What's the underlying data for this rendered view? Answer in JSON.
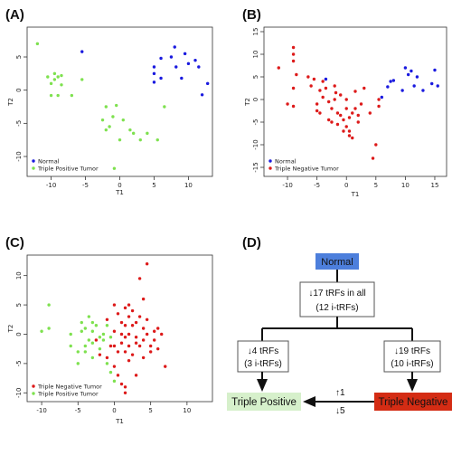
{
  "panels": [
    {
      "label": "(A)"
    },
    {
      "label": "(B)"
    },
    {
      "label": "(C)"
    },
    {
      "label": "(D)"
    }
  ],
  "chart_data": [
    {
      "type": "scatter",
      "xlabel": "T1",
      "ylabel": "T2",
      "xticks": [
        -10,
        -5,
        0,
        5,
        10
      ],
      "yticks": [
        -10,
        -5,
        0,
        5
      ],
      "xlim": [
        -13.5,
        13.5
      ],
      "ylim": [
        -13,
        9.5
      ],
      "legend_position": "bottom-left",
      "series": [
        {
          "name": "Normal",
          "color": "#1a1adf",
          "points": [
            [
              -5.5,
              5.8
            ],
            [
              5,
              3.5
            ],
            [
              5,
              2.5
            ],
            [
              5,
              1.2
            ],
            [
              6,
              4.8
            ],
            [
              6,
              1.8
            ],
            [
              7.5,
              5
            ],
            [
              8,
              6.5
            ],
            [
              8.2,
              3.5
            ],
            [
              9,
              1.8
            ],
            [
              9.5,
              5.5
            ],
            [
              10,
              4
            ],
            [
              11,
              4.5
            ],
            [
              11.5,
              3.5
            ],
            [
              12,
              -0.7
            ],
            [
              12.8,
              1
            ]
          ]
        },
        {
          "name": "Triple Positive Tumor",
          "color": "#7ee14f",
          "points": [
            [
              -12,
              7
            ],
            [
              -10.5,
              2
            ],
            [
              -10,
              1
            ],
            [
              -10,
              -0.8
            ],
            [
              -9.5,
              2.5
            ],
            [
              -9.5,
              1.6
            ],
            [
              -9,
              2
            ],
            [
              -9,
              -0.8
            ],
            [
              -8.5,
              2.2
            ],
            [
              -8.5,
              0.8
            ],
            [
              -7,
              -0.8
            ],
            [
              -5.5,
              1.6
            ],
            [
              -2.5,
              -4.5
            ],
            [
              -2,
              -2.5
            ],
            [
              -2,
              -6
            ],
            [
              -1.5,
              -5.5
            ],
            [
              -1,
              -4
            ],
            [
              -0.8,
              -11.8
            ],
            [
              -0.5,
              -2.3
            ],
            [
              0,
              -7.5
            ],
            [
              0.5,
              -4.5
            ],
            [
              1.5,
              -6
            ],
            [
              2,
              -6.5
            ],
            [
              3,
              -7.5
            ],
            [
              4,
              -6.5
            ],
            [
              5.5,
              -7.5
            ],
            [
              6.5,
              -2.5
            ]
          ]
        }
      ]
    },
    {
      "type": "scatter",
      "xlabel": "T1",
      "ylabel": "T2",
      "xticks": [
        -10,
        -5,
        0,
        5,
        10,
        15
      ],
      "yticks": [
        -15,
        -10,
        -5,
        0,
        5,
        10,
        15
      ],
      "xlim": [
        -14,
        17
      ],
      "ylim": [
        -17,
        16
      ],
      "legend_position": "bottom-left",
      "series": [
        {
          "name": "Normal",
          "color": "#1a1adf",
          "points": [
            [
              -3.5,
              4.5
            ],
            [
              6,
              0.5
            ],
            [
              7,
              2.8
            ],
            [
              7.5,
              4
            ],
            [
              8,
              4.2
            ],
            [
              9.5,
              2
            ],
            [
              10,
              7
            ],
            [
              10.5,
              5.5
            ],
            [
              11,
              6.3
            ],
            [
              11.5,
              3
            ],
            [
              12,
              5
            ],
            [
              13,
              2
            ],
            [
              14.5,
              3.5
            ],
            [
              15,
              6.5
            ],
            [
              15.5,
              3
            ]
          ]
        },
        {
          "name": "Triple Negative Tumor",
          "color": "#dd1a1a",
          "points": [
            [
              -9,
              10
            ],
            [
              -9,
              11.5
            ],
            [
              -9,
              8.5
            ],
            [
              -8.5,
              5.5
            ],
            [
              -9,
              2.5
            ],
            [
              -9,
              -1.5
            ],
            [
              -10,
              -1
            ],
            [
              -11.5,
              7
            ],
            [
              -6,
              3
            ],
            [
              -5.5,
              4.5
            ],
            [
              -5,
              -1
            ],
            [
              -5,
              -2.5
            ],
            [
              -4.5,
              2
            ],
            [
              -4.5,
              -3
            ],
            [
              -4,
              4
            ],
            [
              -4,
              0.5
            ],
            [
              -3.5,
              2.5
            ],
            [
              -3,
              -4.5
            ],
            [
              -3,
              -0.5
            ],
            [
              -2.5,
              -2
            ],
            [
              -2.5,
              -5
            ],
            [
              -2,
              3
            ],
            [
              -2,
              0
            ],
            [
              -1.8,
              1.5
            ],
            [
              -1.5,
              -3
            ],
            [
              -1.5,
              -5.5
            ],
            [
              -1,
              1
            ],
            [
              -1,
              -3.5
            ],
            [
              -0.5,
              -7
            ],
            [
              -0.5,
              -4.5
            ],
            [
              0,
              -2
            ],
            [
              0,
              -6
            ],
            [
              0,
              0
            ],
            [
              0.5,
              -4
            ],
            [
              0.5,
              -7
            ],
            [
              0.5,
              -8
            ],
            [
              1,
              -3
            ],
            [
              1,
              -8.5
            ],
            [
              1.5,
              1.8
            ],
            [
              1.5,
              -2
            ],
            [
              2,
              -3.5
            ],
            [
              2,
              -5
            ],
            [
              2.5,
              -1
            ],
            [
              3,
              2.5
            ],
            [
              4,
              -3
            ],
            [
              4.5,
              -13
            ],
            [
              5,
              -10
            ],
            [
              5.5,
              0
            ],
            [
              5.5,
              -1.5
            ],
            [
              -6.5,
              5
            ]
          ]
        }
      ]
    },
    {
      "type": "scatter",
      "xlabel": "T1",
      "ylabel": "T2",
      "xticks": [
        -10,
        -5,
        0,
        5,
        10
      ],
      "yticks": [
        -10,
        -5,
        0,
        5,
        10
      ],
      "xlim": [
        -12,
        13.5
      ],
      "ylim": [
        -11.5,
        13.5
      ],
      "legend_position": "bottom-left",
      "series": [
        {
          "name": "Triple Negative Tumor",
          "color": "#dd1a1a",
          "points": [
            [
              -2.5,
              -1
            ],
            [
              -2,
              -3.5
            ],
            [
              -1,
              2.5
            ],
            [
              -1,
              -4
            ],
            [
              -0.5,
              -2
            ],
            [
              0,
              0.5
            ],
            [
              0,
              -2
            ],
            [
              0,
              -5.5
            ],
            [
              0,
              5
            ],
            [
              0.5,
              3.5
            ],
            [
              0.5,
              -3
            ],
            [
              0.5,
              -7
            ],
            [
              1,
              2
            ],
            [
              1,
              0
            ],
            [
              1,
              -1.5
            ],
            [
              1,
              -8.5
            ],
            [
              1.5,
              4.5
            ],
            [
              1.5,
              1.5
            ],
            [
              1.5,
              -0.5
            ],
            [
              1.5,
              -3
            ],
            [
              1.5,
              -9
            ],
            [
              1.5,
              -10
            ],
            [
              2,
              5
            ],
            [
              2,
              3
            ],
            [
              2,
              0
            ],
            [
              2,
              -2
            ],
            [
              2,
              -4.5
            ],
            [
              2.5,
              1.5
            ],
            [
              2.5,
              4
            ],
            [
              2.5,
              -3.5
            ],
            [
              3,
              2
            ],
            [
              3,
              -0.5
            ],
            [
              3,
              -1.5
            ],
            [
              3,
              -7
            ],
            [
              3.5,
              9.5
            ],
            [
              3.5,
              3
            ],
            [
              3.5,
              -2
            ],
            [
              4,
              6
            ],
            [
              4,
              1
            ],
            [
              4,
              -1
            ],
            [
              4,
              -4
            ],
            [
              4.5,
              12
            ],
            [
              4.5,
              2.5
            ],
            [
              4.5,
              0
            ],
            [
              5,
              -2
            ],
            [
              5,
              -3
            ],
            [
              5.5,
              0.5
            ],
            [
              5.5,
              -1
            ],
            [
              6,
              -2.5
            ],
            [
              6,
              1
            ],
            [
              6.5,
              0
            ],
            [
              7,
              -5.5
            ]
          ]
        },
        {
          "name": "Triple Positive Tumor",
          "color": "#7ee14f",
          "points": [
            [
              -10,
              0.5
            ],
            [
              -9,
              5
            ],
            [
              -9,
              1
            ],
            [
              -6,
              0
            ],
            [
              -6,
              -2
            ],
            [
              -5,
              -5
            ],
            [
              -4.5,
              0.5
            ],
            [
              -4.5,
              2
            ],
            [
              -4,
              -2
            ],
            [
              -4,
              -3
            ],
            [
              -4,
              1
            ],
            [
              -3.5,
              3
            ],
            [
              -3.5,
              -1
            ],
            [
              -3,
              0.5
            ],
            [
              -3,
              -1.5
            ],
            [
              -3,
              2
            ],
            [
              -2.5,
              1.5
            ],
            [
              -2,
              -0.5
            ],
            [
              -2,
              -2.5
            ],
            [
              -1.5,
              0
            ],
            [
              -1.5,
              -1
            ],
            [
              -1,
              1.5
            ],
            [
              -1,
              -5
            ],
            [
              -0.5,
              -0.5
            ],
            [
              -0.5,
              -6.5
            ],
            [
              0,
              -8
            ],
            [
              -5,
              -3
            ],
            [
              -3,
              -4
            ]
          ]
        }
      ]
    }
  ],
  "diagram": {
    "normal": "Normal",
    "common_line1": "↓17 tRFs in all",
    "common_line2": "(12 i-tRFs)",
    "left_line1": "↓4 tRFs",
    "left_line2": "(3 i-tRFs)",
    "right_line1": "↓19 tRFs",
    "right_line2": "(10 i-tRFs)",
    "triple_positive": "Triple Positive",
    "triple_negative": "Triple Negative",
    "up_count": "↑1",
    "down_count": "↓5",
    "colors": {
      "normal": "#4d7fdc",
      "triple_positive": "#d6f0cb",
      "triple_negative": "#d42c14"
    }
  }
}
